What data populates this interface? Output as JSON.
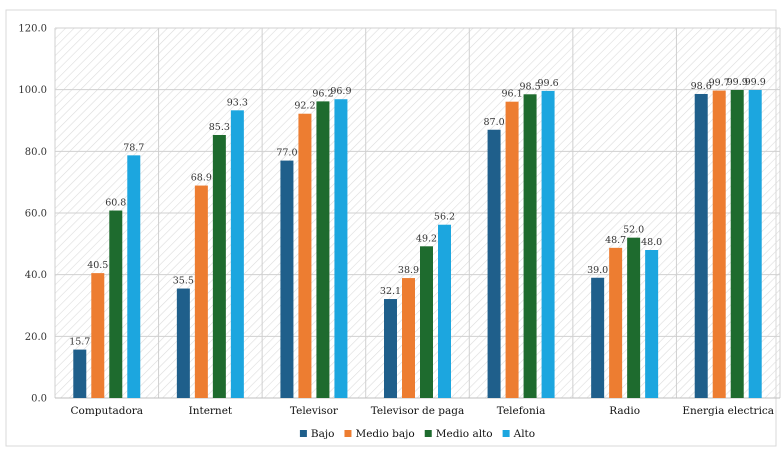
{
  "chart_data": {
    "type": "bar",
    "title": "",
    "xlabel": "",
    "ylabel": "",
    "ylim": [
      0,
      120
    ],
    "yticks": [
      "0.0",
      "20.0",
      "40.0",
      "60.0",
      "80.0",
      "100.0",
      "120.0"
    ],
    "grid": true,
    "legend_position": "bottom",
    "categories": [
      "Computadora",
      "Internet",
      "Televisor",
      "Televisor de paga",
      "Telefonia",
      "Radio",
      "Energia electrica"
    ],
    "series": [
      {
        "name": "Bajo",
        "color": "#1f5f8b",
        "values": [
          15.7,
          35.5,
          77.0,
          32.1,
          87.0,
          39.0,
          98.6
        ],
        "labels": [
          "15.7",
          "35.5",
          "77.0",
          "32.1",
          "87.0",
          "39.0",
          "98.6"
        ]
      },
      {
        "name": "Medio bajo",
        "color": "#ed7d31",
        "values": [
          40.5,
          68.9,
          92.2,
          38.9,
          96.1,
          48.7,
          99.7
        ],
        "labels": [
          "40.5",
          "68.9",
          "92.2",
          "38.9",
          "96.1",
          "48.7",
          "99.7"
        ]
      },
      {
        "name": "Medio alto",
        "color": "#1e6b2e",
        "values": [
          60.8,
          85.3,
          96.2,
          49.2,
          98.5,
          52.0,
          99.9
        ],
        "labels": [
          "60.8",
          "85.3",
          "96.2",
          "49.2",
          "98.5",
          "52.0",
          "99.9"
        ]
      },
      {
        "name": "Alto",
        "color": "#1ca6df",
        "values": [
          78.7,
          93.3,
          96.9,
          56.2,
          99.6,
          48.0,
          99.9
        ],
        "labels": [
          "78.7",
          "93.3",
          "96.9",
          "56.2",
          "99.6",
          "48.0",
          "99.9"
        ]
      }
    ]
  }
}
